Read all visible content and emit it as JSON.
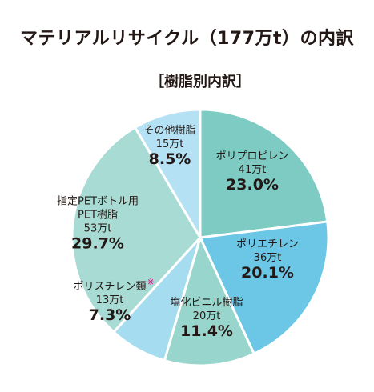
{
  "title": "マテリアルリサイクル（177万t）の内訳",
  "subtitle": "［樹脂別内訳］",
  "chart_data": {
    "type": "pie",
    "title": "マテリアルリサイクル（177万t）の内訳",
    "subtitle": "［樹脂別内訳］",
    "start_angle_deg": 0,
    "direction": "clockwise",
    "slices": [
      {
        "label": "ポリプロピレン",
        "amount": "41万t",
        "percent_label": "23.0%",
        "value": 23.0,
        "color": "#7ecbc3"
      },
      {
        "label": "ポリエチレン",
        "amount": "36万t",
        "percent_label": "20.1%",
        "value": 20.1,
        "color": "#6cc6e6"
      },
      {
        "label": "塩化ビニル樹脂",
        "amount": "20万t",
        "percent_label": "11.4%",
        "value": 11.4,
        "color": "#98d5cc"
      },
      {
        "label": "ポリスチレン類",
        "note_mark": "※",
        "amount": "13万t",
        "percent_label": "7.3%",
        "value": 7.3,
        "color": "#a6dcef"
      },
      {
        "label": "指定PETボトル用PET樹脂",
        "label_lines": [
          "指定PETボトル用",
          "PET樹脂"
        ],
        "amount": "53万t",
        "percent_label": "29.7%",
        "value": 29.7,
        "color": "#a8dbd4"
      },
      {
        "label": "その他樹脂",
        "amount": "15万t",
        "percent_label": "8.5%",
        "value": 8.5,
        "color": "#b4e1f3"
      }
    ]
  }
}
